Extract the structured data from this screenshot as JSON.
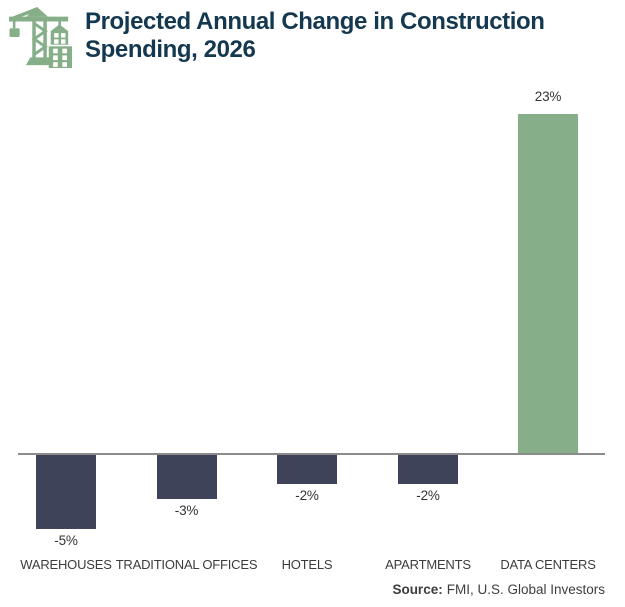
{
  "header": {
    "title_line1": "Projected Annual Change in Construction",
    "title_line2": "Spending, 2026",
    "icon": "construction-crane-icon"
  },
  "source": {
    "label": "Source:",
    "text": "FMI, U.S. Global Investors"
  },
  "colors": {
    "title": "#14384F",
    "bar_negative": "#3E4359",
    "bar_positive": "#85AE89",
    "axis": "#8C8C8C",
    "label_text": "#3C3C3C",
    "icon_green": "#85AE89"
  },
  "chart_data": {
    "type": "bar",
    "title": "Projected Annual Change in Construction Spending, 2026",
    "categories": [
      "WAREHOUSES",
      "TRADITIONAL OFFICES",
      "HOTELS",
      "APARTMENTS",
      "DATA CENTERS"
    ],
    "values": [
      -5,
      -3,
      -2,
      -2,
      23
    ],
    "value_labels": [
      "-5%",
      "-3%",
      "-2%",
      "-2%",
      "23%"
    ],
    "xlabel": "",
    "ylabel": "",
    "ylim": [
      -6,
      24
    ],
    "grid": false,
    "legend": null,
    "baseline": 0,
    "bar_colors_rule": "negative values navy (#3E4359), positive values green (#85AE89)",
    "source": "FMI, U.S. Global Investors"
  }
}
